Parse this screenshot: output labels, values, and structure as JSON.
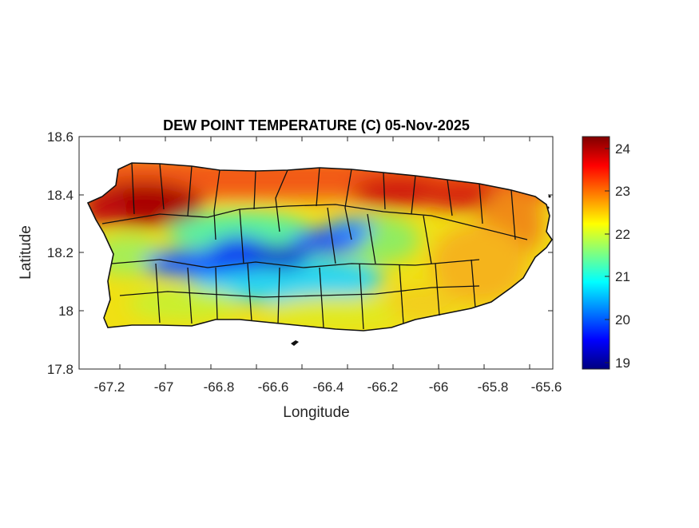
{
  "figure": {
    "title": "DEW POINT TEMPERATURE (C) 05-Nov-2025",
    "xlabel": "Longitude",
    "ylabel": "Latitude",
    "x_ticks": [
      "-67.2",
      "-67",
      "-66.8",
      "-66.6",
      "-66.4",
      "-66.2",
      "-66",
      "-65.8",
      "-65.6"
    ],
    "y_ticks": [
      "18.6",
      "18.4",
      "18.2",
      "18",
      "17.8"
    ],
    "colorbar_ticks": [
      "24",
      "23",
      "22",
      "21",
      "20",
      "19"
    ]
  },
  "chart_data": {
    "type": "heatmap",
    "title": "DEW POINT TEMPERATURE (C) 05-Nov-2025",
    "xlabel": "Longitude",
    "ylabel": "Latitude",
    "xlim": [
      -67.3,
      -65.58
    ],
    "ylim": [
      17.8,
      18.6
    ],
    "x_ticks": [
      -67.2,
      -67,
      -66.8,
      -66.6,
      -66.4,
      -66.2,
      -66,
      -65.8,
      -65.6
    ],
    "y_ticks": [
      17.8,
      18,
      18.2,
      18.4,
      18.6
    ],
    "colorbar": {
      "colormap": "jet",
      "clim": [
        18.85,
        24.3
      ],
      "ticks": [
        19,
        20,
        21,
        22,
        23,
        24
      ]
    },
    "field_description": {
      "north_coast": 23.5,
      "northwest_corner": 24.1,
      "central_mountains": 20.0,
      "south_coast": 22.0,
      "east": 22.8
    }
  }
}
